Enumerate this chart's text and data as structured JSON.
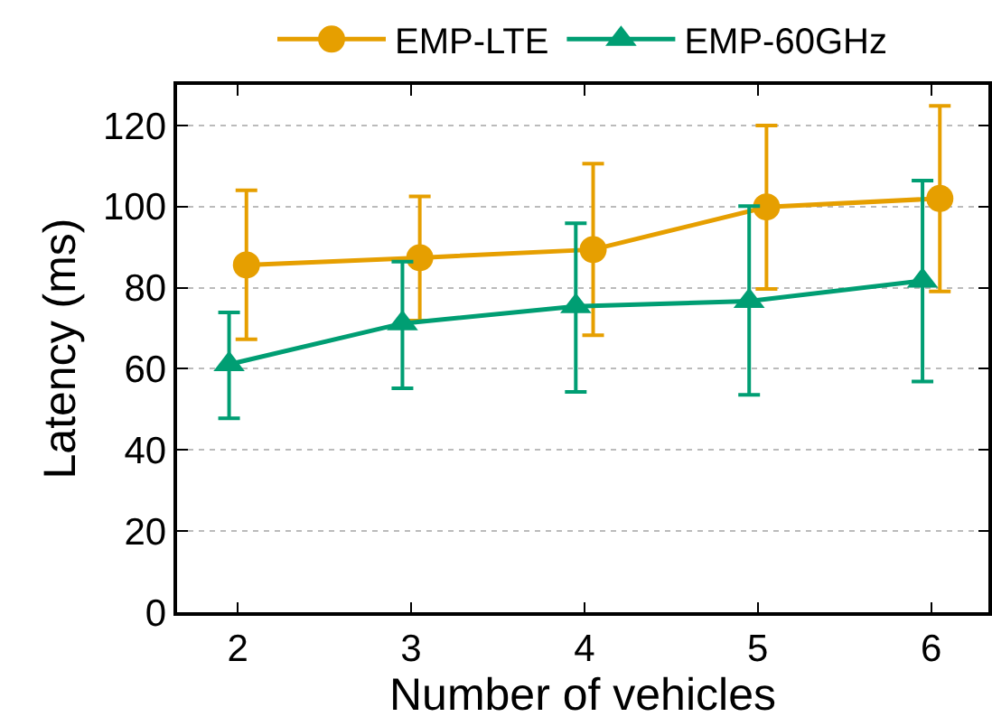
{
  "chart_data": {
    "type": "line",
    "xlabel": "Number of vehicles",
    "ylabel": "Latency (ms)",
    "xlim": [
      1.65,
      6.33
    ],
    "xticks": [
      2,
      3,
      4,
      5,
      6
    ],
    "ylim": [
      0,
      130
    ],
    "yticks": [
      0,
      20,
      40,
      60,
      80,
      100,
      120
    ],
    "grid": "y",
    "legend": "top",
    "line_style": "solid",
    "series": [
      {
        "name": "EMP-LTE",
        "color": "#e69f00",
        "marker": "circle",
        "x": [
          2.05,
          3.05,
          4.05,
          5.05,
          6.05
        ],
        "values": [
          85.6,
          87.4,
          89.4,
          99.9,
          102
        ],
        "errors": [
          [
            67.3,
            104
          ],
          [
            71.9,
            102.5
          ],
          [
            68.3,
            110.6
          ],
          [
            79.7,
            120
          ],
          [
            79.1,
            124.8
          ]
        ]
      },
      {
        "name": "EMP-60GHz",
        "color": "#009e73",
        "marker": "triangle",
        "x": [
          1.95,
          2.95,
          3.95,
          4.95,
          5.95
        ],
        "values": [
          61.1,
          71.2,
          75.4,
          76.7,
          81.7
        ],
        "errors": [
          [
            47.8,
            73.9
          ],
          [
            55.2,
            86.4
          ],
          [
            54.3,
            95.9
          ],
          [
            53.6,
            100.1
          ],
          [
            56.9,
            106.4
          ]
        ]
      }
    ]
  }
}
